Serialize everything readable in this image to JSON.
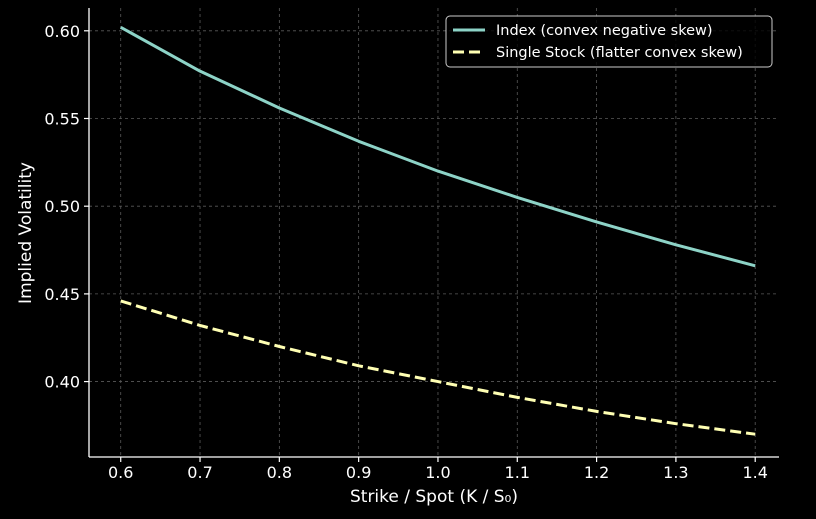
{
  "chart_data": {
    "type": "line",
    "title": "",
    "xlabel": "Strike / Spot (K / S₀)",
    "ylabel": "Implied Volatility",
    "xlim": [
      0.56,
      1.43
    ],
    "ylim": [
      0.357,
      0.613
    ],
    "x_ticks": [
      0.6,
      0.7,
      0.8,
      0.9,
      1.0,
      1.1,
      1.2,
      1.3,
      1.4
    ],
    "x_tick_labels": [
      "0.6",
      "0.7",
      "0.8",
      "0.9",
      "1.0",
      "1.1",
      "1.2",
      "1.3",
      "1.4"
    ],
    "y_ticks": [
      0.4,
      0.45,
      0.5,
      0.55,
      0.6
    ],
    "y_tick_labels": [
      "0.40",
      "0.45",
      "0.50",
      "0.55",
      "0.60"
    ],
    "grid": true,
    "legend_position": "top-right",
    "x": [
      0.6,
      0.7,
      0.8,
      0.9,
      1.0,
      1.1,
      1.2,
      1.3,
      1.4
    ],
    "series": [
      {
        "name": "Index (convex negative skew)",
        "color": "#8dd3c7",
        "style": "solid",
        "values": [
          0.602,
          0.577,
          0.556,
          0.537,
          0.52,
          0.505,
          0.491,
          0.478,
          0.466
        ]
      },
      {
        "name": "Single Stock (flatter convex skew)",
        "color": "#ffffb3",
        "style": "dashed",
        "values": [
          0.446,
          0.432,
          0.42,
          0.409,
          0.4,
          0.391,
          0.383,
          0.376,
          0.37
        ]
      }
    ]
  }
}
